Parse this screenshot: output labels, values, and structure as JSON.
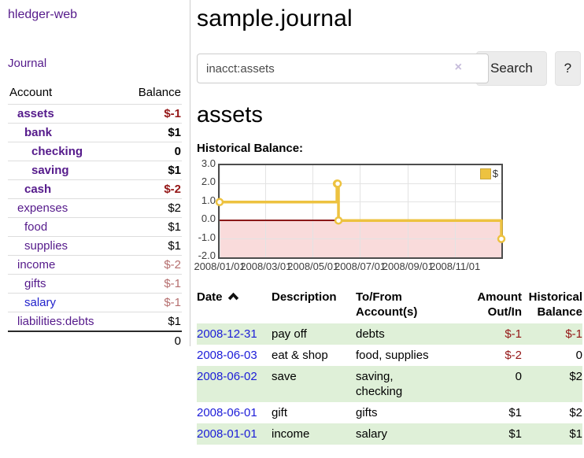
{
  "sidebar": {
    "brand": "hledger-web",
    "nav": {
      "journal": "Journal"
    },
    "accounts_header": {
      "account": "Account",
      "balance": "Balance"
    },
    "accounts": [
      {
        "name": "assets",
        "balance": "$-1"
      },
      {
        "name": "bank",
        "balance": "$1"
      },
      {
        "name": "checking",
        "balance": "0"
      },
      {
        "name": "saving",
        "balance": "$1"
      },
      {
        "name": "cash",
        "balance": "$-2"
      },
      {
        "name": "expenses",
        "balance": "$2"
      },
      {
        "name": "food",
        "balance": "$1"
      },
      {
        "name": "supplies",
        "balance": "$1"
      },
      {
        "name": "income",
        "balance": "$-2"
      },
      {
        "name": "gifts",
        "balance": "$-1"
      },
      {
        "name": "salary",
        "balance": "$-1"
      },
      {
        "name": "liabilities:debts",
        "balance": "$1"
      }
    ],
    "total": "0"
  },
  "main": {
    "title": "sample.journal",
    "search": {
      "value": "inacct:assets",
      "clear_icon": "×",
      "search_button": "Search",
      "help_button": "?"
    },
    "account_heading": "assets",
    "chart_heading": "Historical Balance:"
  },
  "chart_data": {
    "type": "line",
    "title": "Historical Balance",
    "series": [
      {
        "name": "$",
        "step": true,
        "points": [
          [
            "2008-01-01",
            1
          ],
          [
            "2008-06-01",
            2
          ],
          [
            "2008-06-02",
            2
          ],
          [
            "2008-06-03",
            0
          ],
          [
            "2008-12-31",
            -1
          ]
        ]
      }
    ],
    "yticks": [
      "3.0",
      "2.0",
      "1.0",
      "0.0",
      "-1.0",
      "-2.0"
    ],
    "xticks": [
      "2008/01/01",
      "2008/03/01",
      "2008/05/01",
      "2008/07/01",
      "2008/09/01",
      "2008/11/01"
    ],
    "ylim": [
      -2,
      3
    ],
    "xlim": [
      "2008-01-01",
      "2008-12-31"
    ],
    "legend": {
      "label": "$",
      "position": "top-right"
    },
    "colors": {
      "line": "#edc240",
      "negative_region": "#f9dbdb",
      "zero_line": "#8b1717"
    },
    "grid": true
  },
  "table": {
    "headers": {
      "date": "Date",
      "description": "Description",
      "accounts": "To/From Account(s)",
      "amount": "Amount Out/In",
      "balance": "Historical Balance"
    },
    "rows": [
      {
        "date": "2008-12-31",
        "description": "pay off",
        "accounts": "debts",
        "amount": "$-1",
        "balance": "$-1"
      },
      {
        "date": "2008-06-03",
        "description": "eat & shop",
        "accounts": "food, supplies",
        "amount": "$-2",
        "balance": "0"
      },
      {
        "date": "2008-06-02",
        "description": "save",
        "accounts": "saving, checking",
        "amount": "0",
        "balance": "$2"
      },
      {
        "date": "2008-06-01",
        "description": "gift",
        "accounts": "gifts",
        "amount": "$1",
        "balance": "$2"
      },
      {
        "date": "2008-01-01",
        "description": "income",
        "accounts": "salary",
        "amount": "$1",
        "balance": "$1"
      }
    ]
  }
}
